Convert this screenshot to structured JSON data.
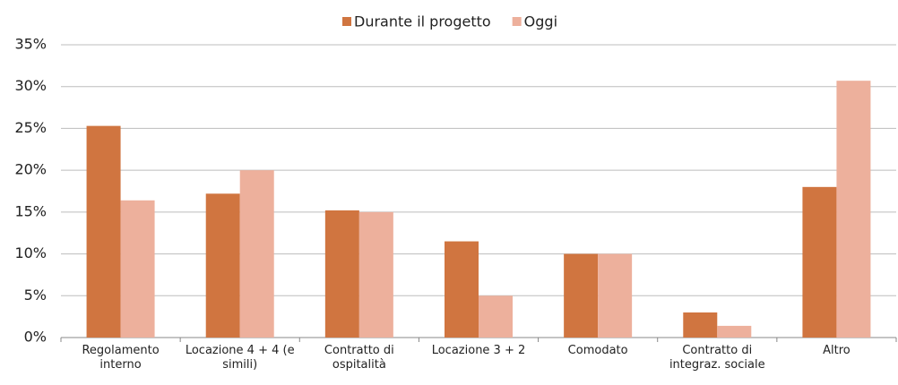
{
  "chart_data": {
    "type": "bar",
    "categories": [
      "Regolamento interno",
      "Locazione 4 + 4 (e simili)",
      "Contratto di ospitalità",
      "Locazione 3 + 2",
      "Comodato",
      "Contratto di integraz. sociale",
      "Altro"
    ],
    "series": [
      {
        "name": "Durante il progetto",
        "color": "#d07540",
        "values": [
          25.3,
          17.2,
          15.2,
          11.5,
          10.0,
          3.0,
          18.0
        ]
      },
      {
        "name": "Oggi",
        "color": "#edb09c",
        "values": [
          16.4,
          20.0,
          15.0,
          5.0,
          10.0,
          1.4,
          30.7
        ]
      }
    ],
    "ylim": [
      0,
      35
    ],
    "yticks": [
      {
        "value": 0,
        "label": "0%"
      },
      {
        "value": 5,
        "label": "5%"
      },
      {
        "value": 10,
        "label": "10%"
      },
      {
        "value": 15,
        "label": "15%"
      },
      {
        "value": 20,
        "label": "20%"
      },
      {
        "value": 25,
        "label": "25%"
      },
      {
        "value": 30,
        "label": "30%"
      },
      {
        "value": 35,
        "label": "35%"
      }
    ],
    "grid": true,
    "legend": "top"
  }
}
